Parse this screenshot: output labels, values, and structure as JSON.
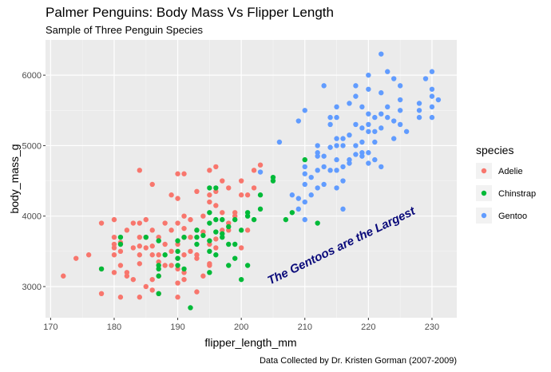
{
  "chart_data": {
    "type": "scatter",
    "title": "Palmer Penguins: Body Mass Vs Flipper Length",
    "subtitle": "Sample of Three Penguin Species",
    "caption": "Data Collected by Dr. Kristen Gorman (2007-2009)",
    "xlabel": "flipper_length_mm",
    "ylabel": "body_mass_g",
    "xlim": [
      169.2,
      233.9
    ],
    "ylim": [
      2558,
      6500
    ],
    "xticks": [
      170,
      180,
      190,
      200,
      210,
      220,
      230
    ],
    "yticks": [
      3000,
      4000,
      5000,
      6000
    ],
    "grid": true,
    "legend": {
      "title": "species",
      "placement": "right"
    },
    "annotation": {
      "text": "The Gentoos are the Largest",
      "x": 216,
      "y": 3530,
      "angle": -26,
      "color": "#0a0a7a"
    },
    "series": [
      {
        "name": "Adelie",
        "color": "#F8766D",
        "points": [
          [
            172,
            3150
          ],
          [
            174,
            3400
          ],
          [
            176,
            3450
          ],
          [
            178,
            3900
          ],
          [
            178,
            3250
          ],
          [
            178,
            2900
          ],
          [
            180,
            3950
          ],
          [
            180,
            3700
          ],
          [
            180,
            3600
          ],
          [
            180,
            3550
          ],
          [
            180,
            3450
          ],
          [
            181,
            3300
          ],
          [
            181,
            2850
          ],
          [
            181,
            3625
          ],
          [
            182,
            3200
          ],
          [
            182,
            3150
          ],
          [
            182,
            3800
          ],
          [
            183,
            3550
          ],
          [
            183,
            3100
          ],
          [
            184,
            4650
          ],
          [
            184,
            3900
          ],
          [
            184,
            3450
          ],
          [
            184,
            3325
          ],
          [
            184,
            2850
          ],
          [
            185,
            3700
          ],
          [
            185,
            3550
          ],
          [
            185,
            3000
          ],
          [
            186,
            3800
          ],
          [
            186,
            3450
          ],
          [
            186,
            3100
          ],
          [
            186,
            4450
          ],
          [
            187,
            3150
          ],
          [
            187,
            3700
          ],
          [
            187,
            3350
          ],
          [
            187,
            2900
          ],
          [
            188,
            3300
          ],
          [
            188,
            3600
          ],
          [
            189,
            4300
          ],
          [
            189,
            3800
          ],
          [
            189,
            3500
          ],
          [
            190,
            4600
          ],
          [
            190,
            3900
          ],
          [
            190,
            3600
          ],
          [
            190,
            3400
          ],
          [
            190,
            3050
          ],
          [
            190,
            2850
          ],
          [
            191,
            3700
          ],
          [
            191,
            3450
          ],
          [
            191,
            3200
          ],
          [
            191,
            4000
          ],
          [
            192,
            3950
          ],
          [
            192,
            3500
          ],
          [
            192,
            3700
          ],
          [
            193,
            3800
          ],
          [
            193,
            3450
          ],
          [
            193,
            3400
          ],
          [
            194,
            4000
          ],
          [
            194,
            3775
          ],
          [
            195,
            4200
          ],
          [
            195,
            3600
          ],
          [
            195,
            3300
          ],
          [
            196,
            4150
          ],
          [
            196,
            3550
          ],
          [
            196,
            4350
          ],
          [
            197,
            4500
          ],
          [
            197,
            4050
          ],
          [
            197,
            3800
          ],
          [
            198,
            4400
          ],
          [
            198,
            3900
          ],
          [
            199,
            4000
          ],
          [
            199,
            4050
          ],
          [
            200,
            3550
          ],
          [
            200,
            4300
          ],
          [
            201,
            4300
          ],
          [
            201,
            3800
          ],
          [
            202,
            4650
          ],
          [
            202,
            4400
          ],
          [
            203,
            4725
          ],
          [
            195,
            3325
          ],
          [
            186,
            2950
          ],
          [
            181,
            3500
          ],
          [
            189,
            3300
          ],
          [
            194,
            3150
          ],
          [
            193,
            2925
          ],
          [
            191,
            3100
          ],
          [
            184,
            3700
          ],
          [
            187,
            3450
          ],
          [
            190,
            3250
          ],
          [
            196,
            3675
          ],
          [
            185,
            3950
          ],
          [
            184,
            3575
          ],
          [
            188,
            3900
          ],
          [
            180,
            3200
          ],
          [
            183,
            3900
          ],
          [
            195,
            4300
          ],
          [
            191,
            3825
          ],
          [
            190,
            4250
          ],
          [
            186,
            3575
          ],
          [
            198,
            3800
          ],
          [
            200,
            4500
          ],
          [
            191,
            4600
          ],
          [
            195,
            4650
          ],
          [
            196,
            4700
          ],
          [
            193,
            4350
          ]
        ]
      },
      {
        "name": "Chinstrap",
        "color": "#00BA38",
        "points": [
          [
            178,
            3250
          ],
          [
            181,
            3700
          ],
          [
            181,
            3600
          ],
          [
            185,
            3700
          ],
          [
            187,
            3650
          ],
          [
            187,
            3300
          ],
          [
            187,
            3250
          ],
          [
            187,
            3150
          ],
          [
            187,
            2900
          ],
          [
            188,
            3450
          ],
          [
            190,
            3650
          ],
          [
            190,
            3400
          ],
          [
            190,
            3300
          ],
          [
            190,
            3500
          ],
          [
            191,
            3700
          ],
          [
            191,
            3250
          ],
          [
            192,
            2700
          ],
          [
            193,
            3800
          ],
          [
            193,
            3700
          ],
          [
            193,
            3600
          ],
          [
            194,
            3725
          ],
          [
            195,
            3500
          ],
          [
            195,
            3200
          ],
          [
            195,
            3650
          ],
          [
            195,
            4400
          ],
          [
            195,
            4050
          ],
          [
            195,
            3900
          ],
          [
            196,
            4400
          ],
          [
            196,
            3950
          ],
          [
            196,
            3775
          ],
          [
            196,
            3450
          ],
          [
            197,
            3950
          ],
          [
            197,
            3700
          ],
          [
            197,
            3750
          ],
          [
            198,
            3600
          ],
          [
            198,
            3300
          ],
          [
            198,
            3850
          ],
          [
            199,
            3400
          ],
          [
            199,
            3950
          ],
          [
            199,
            3600
          ],
          [
            200,
            3800
          ],
          [
            200,
            3100
          ],
          [
            201,
            4050
          ],
          [
            201,
            3300
          ],
          [
            201,
            4000
          ],
          [
            202,
            3950
          ],
          [
            203,
            4300
          ],
          [
            203,
            4100
          ],
          [
            205,
            4550
          ],
          [
            205,
            4500
          ],
          [
            207,
            3950
          ],
          [
            208,
            4050
          ],
          [
            210,
            4800
          ],
          [
            212,
            3900
          ]
        ]
      },
      {
        "name": "Gentoo",
        "color": "#619CFF",
        "points": [
          [
            203,
            4625
          ],
          [
            206,
            5050
          ],
          [
            208,
            4300
          ],
          [
            209,
            5350
          ],
          [
            210,
            5500
          ],
          [
            209,
            4100
          ],
          [
            210,
            4700
          ],
          [
            210,
            4600
          ],
          [
            210,
            4200
          ],
          [
            210,
            3950
          ],
          [
            211,
            4300
          ],
          [
            212,
            4900
          ],
          [
            212,
            4650
          ],
          [
            212,
            4400
          ],
          [
            212,
            5000
          ],
          [
            213,
            5850
          ],
          [
            213,
            4850
          ],
          [
            213,
            4700
          ],
          [
            214,
            5400
          ],
          [
            214,
            5300
          ],
          [
            214,
            4975
          ],
          [
            214,
            4650
          ],
          [
            215,
            5550
          ],
          [
            215,
            5400
          ],
          [
            215,
            5000
          ],
          [
            215,
            4800
          ],
          [
            215,
            4650
          ],
          [
            215,
            5100
          ],
          [
            216,
            5000
          ],
          [
            216,
            4500
          ],
          [
            216,
            5100
          ],
          [
            216,
            4100
          ],
          [
            217,
            5150
          ],
          [
            217,
            4800
          ],
          [
            217,
            4750
          ],
          [
            217,
            5600
          ],
          [
            218,
            5850
          ],
          [
            218,
            5700
          ],
          [
            218,
            5300
          ],
          [
            218,
            5000
          ],
          [
            218,
            4875
          ],
          [
            219,
            5250
          ],
          [
            219,
            5050
          ],
          [
            219,
            4900
          ],
          [
            219,
            5550
          ],
          [
            220,
            6000
          ],
          [
            220,
            5800
          ],
          [
            220,
            5450
          ],
          [
            220,
            5200
          ],
          [
            220,
            5300
          ],
          [
            220,
            4900
          ],
          [
            220,
            4750
          ],
          [
            221,
            5400
          ],
          [
            221,
            5050
          ],
          [
            221,
            4800
          ],
          [
            221,
            5200
          ],
          [
            222,
            6300
          ],
          [
            222,
            5750
          ],
          [
            222,
            5450
          ],
          [
            222,
            5250
          ],
          [
            223,
            6050
          ],
          [
            223,
            5550
          ],
          [
            223,
            5400
          ],
          [
            224,
            5950
          ],
          [
            224,
            5350
          ],
          [
            224,
            5100
          ],
          [
            225,
            5850
          ],
          [
            225,
            5650
          ],
          [
            225,
            5500
          ],
          [
            225,
            5300
          ],
          [
            226,
            5200
          ],
          [
            228,
            5400
          ],
          [
            228,
            5600
          ],
          [
            228,
            5500
          ],
          [
            229,
            5950
          ],
          [
            230,
            6050
          ],
          [
            230,
            5800
          ],
          [
            230,
            5550
          ],
          [
            230,
            5700
          ],
          [
            230,
            5400
          ],
          [
            231,
            5650
          ],
          [
            215,
            4400
          ],
          [
            213,
            4450
          ],
          [
            222,
            4700
          ],
          [
            211,
            4550
          ],
          [
            210,
            4450
          ],
          [
            209,
            4250
          ],
          [
            212,
            4850
          ],
          [
            216,
            4700
          ],
          [
            219,
            4850
          ]
        ]
      }
    ]
  }
}
